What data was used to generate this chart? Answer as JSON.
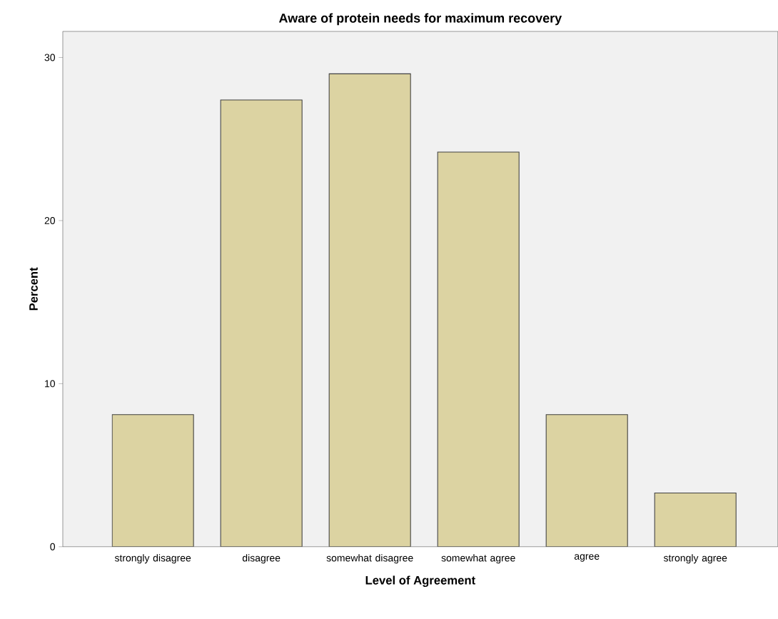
{
  "chart_data": {
    "type": "bar",
    "title": "Aware of protein needs for maximum recovery",
    "xlabel": "Level of Agreement",
    "ylabel": "Percent",
    "categories": [
      "strongly disagree",
      "disagree",
      "somewhat disagree",
      "somewhat agree",
      "agree",
      "strongly agree"
    ],
    "values": [
      8.1,
      27.4,
      29.0,
      24.2,
      8.1,
      3.3
    ],
    "color": "#dcd3a2",
    "ylim": [
      0,
      31.6
    ],
    "yticks": [
      0,
      10,
      20,
      30
    ],
    "grid": false
  }
}
